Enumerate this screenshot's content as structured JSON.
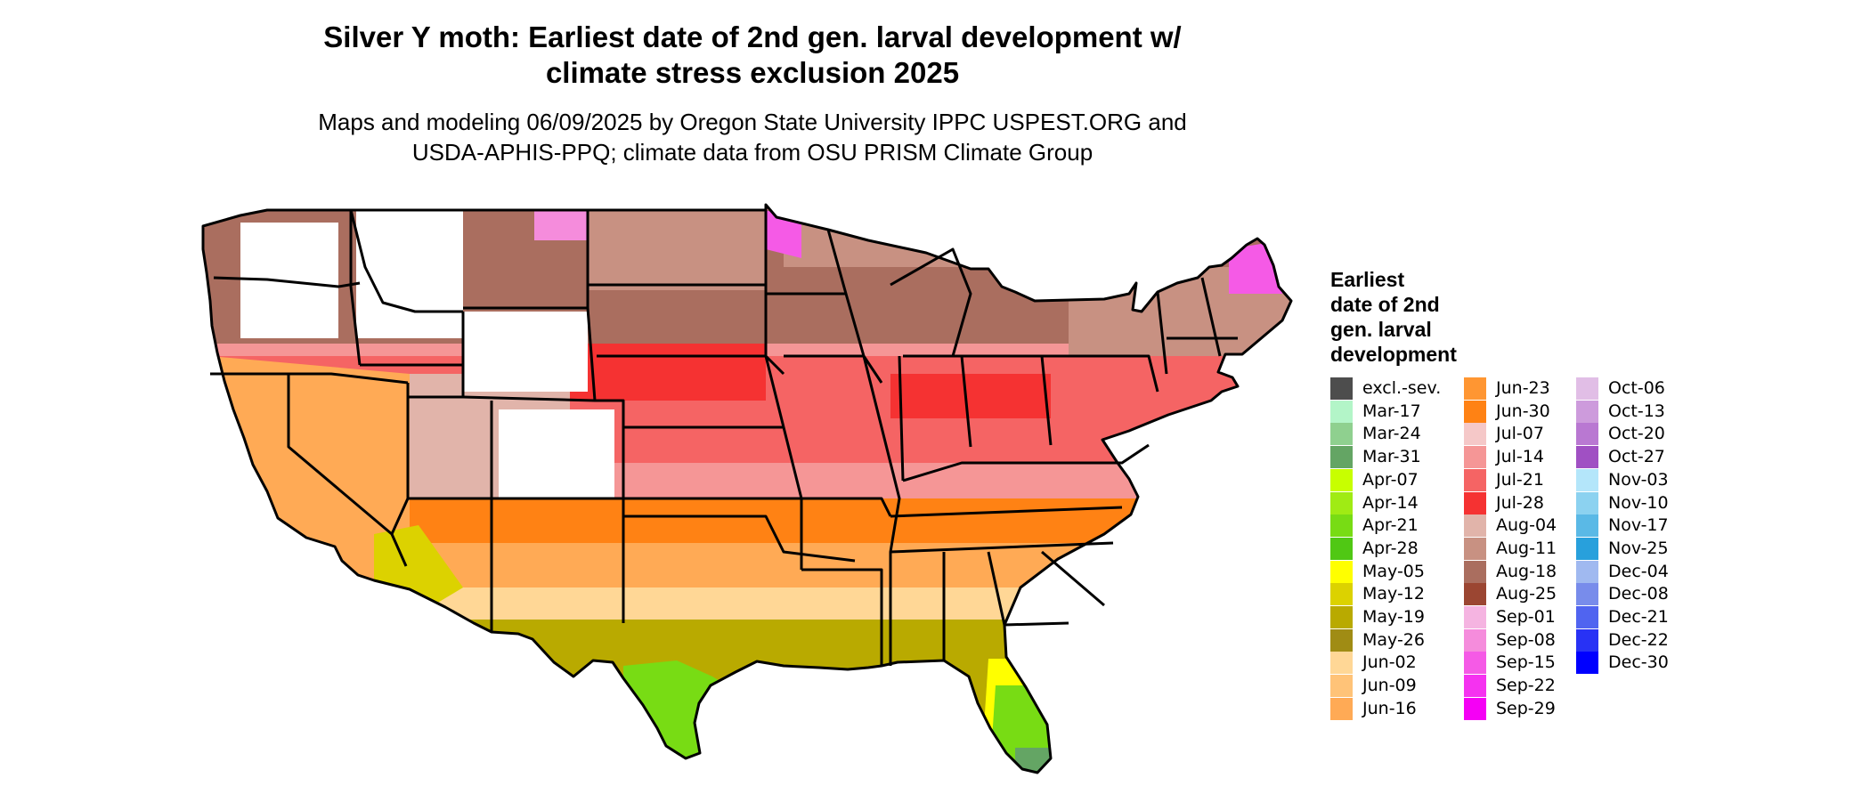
{
  "title_line1": "Silver Y moth: Earliest date of 2nd gen. larval development w/",
  "title_line2": "climate stress exclusion 2025",
  "subtitle_line1": "Maps and modeling 06/09/2025 by Oregon State University IPPC USPEST.ORG and",
  "subtitle_line2": "USDA-APHIS-PPQ; climate data from OSU PRISM Climate Group",
  "legend": {
    "title_lines": [
      "Earliest",
      "date of 2nd",
      "gen. larval",
      "development"
    ],
    "items": [
      {
        "label": "excl.-sev.",
        "color": "#4d4d4d"
      },
      {
        "label": "Mar-17",
        "color": "#b3f5c8"
      },
      {
        "label": "Mar-24",
        "color": "#8fd08f"
      },
      {
        "label": "Mar-31",
        "color": "#64a564"
      },
      {
        "label": "Apr-07",
        "color": "#c8ff00"
      },
      {
        "label": "Apr-14",
        "color": "#a0eb14"
      },
      {
        "label": "Apr-21",
        "color": "#78dc14"
      },
      {
        "label": "Apr-28",
        "color": "#50c814"
      },
      {
        "label": "May-05",
        "color": "#ffff00"
      },
      {
        "label": "May-12",
        "color": "#dcd200"
      },
      {
        "label": "May-19",
        "color": "#b9aa00"
      },
      {
        "label": "May-26",
        "color": "#a08c14"
      },
      {
        "label": "Jun-02",
        "color": "#ffd796"
      },
      {
        "label": "Jun-09",
        "color": "#ffc378"
      },
      {
        "label": "Jun-16",
        "color": "#ffaa55"
      },
      {
        "label": "Jun-23",
        "color": "#ff9632"
      },
      {
        "label": "Jun-30",
        "color": "#ff8214"
      },
      {
        "label": "Jul-07",
        "color": "#f5c8c8"
      },
      {
        "label": "Jul-14",
        "color": "#f59696"
      },
      {
        "label": "Jul-21",
        "color": "#f56464"
      },
      {
        "label": "Jul-28",
        "color": "#f53232"
      },
      {
        "label": "Aug-04",
        "color": "#e1b4aa"
      },
      {
        "label": "Aug-11",
        "color": "#c89182"
      },
      {
        "label": "Aug-18",
        "color": "#aa6e5f"
      },
      {
        "label": "Aug-25",
        "color": "#9b4632"
      },
      {
        "label": "Sep-01",
        "color": "#f5b4e1"
      },
      {
        "label": "Sep-08",
        "color": "#f58cdc"
      },
      {
        "label": "Sep-15",
        "color": "#f55ae6"
      },
      {
        "label": "Sep-22",
        "color": "#f532f0"
      },
      {
        "label": "Sep-29",
        "color": "#f500f5"
      },
      {
        "label": "Oct-06",
        "color": "#e1bee6"
      },
      {
        "label": "Oct-13",
        "color": "#cd9bdc"
      },
      {
        "label": "Oct-20",
        "color": "#b978d2"
      },
      {
        "label": "Oct-27",
        "color": "#a050c3"
      },
      {
        "label": "Nov-03",
        "color": "#b4e6fa"
      },
      {
        "label": "Nov-10",
        "color": "#8cd2f0"
      },
      {
        "label": "Nov-17",
        "color": "#5ab9e6"
      },
      {
        "label": "Nov-25",
        "color": "#28a0dc"
      },
      {
        "label": "Dec-04",
        "color": "#a0b9f0"
      },
      {
        "label": "Dec-08",
        "color": "#788ceb"
      },
      {
        "label": "Dec-21",
        "color": "#5064f0"
      },
      {
        "label": "Dec-22",
        "color": "#2832f5"
      },
      {
        "label": "Dec-30",
        "color": "#0000ff"
      }
    ]
  }
}
